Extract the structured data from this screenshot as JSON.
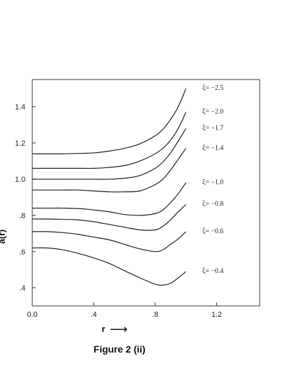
{
  "chart_data": {
    "type": "line",
    "caption": "Figure 2 (ii)",
    "xlabel": "r",
    "ylabel": "a(r)",
    "xlim": [
      0.0,
      1.48
    ],
    "ylim": [
      0.3,
      1.55
    ],
    "x_ticks": [
      0.0,
      0.4,
      0.8,
      1.2
    ],
    "x_tick_labels": [
      "0.0",
      ".4",
      ".8",
      "1.2"
    ],
    "y_ticks": [
      0.4,
      0.6,
      0.8,
      1.0,
      1.2,
      1.4
    ],
    "y_tick_labels": [
      ".4",
      ".6",
      ".8",
      "1.0",
      "1.2",
      "1.4"
    ],
    "grid": false,
    "x": [
      0.0,
      0.1,
      0.2,
      0.3,
      0.4,
      0.5,
      0.6,
      0.7,
      0.8,
      0.85,
      0.9,
      0.95,
      1.0
    ],
    "series": [
      {
        "name": "ξ= −2.5",
        "values": [
          1.14,
          1.14,
          1.14,
          1.142,
          1.145,
          1.155,
          1.17,
          1.195,
          1.24,
          1.275,
          1.33,
          1.4,
          1.5
        ]
      },
      {
        "name": "ξ= −2.0",
        "values": [
          1.06,
          1.06,
          1.06,
          1.06,
          1.06,
          1.065,
          1.075,
          1.1,
          1.14,
          1.17,
          1.215,
          1.28,
          1.37
        ]
      },
      {
        "name": "ξ= −1.7",
        "values": [
          1.0,
          1.0,
          1.0,
          1.0,
          1.0,
          1.0,
          1.005,
          1.02,
          1.06,
          1.095,
          1.145,
          1.21,
          1.28
        ]
      },
      {
        "name": "ξ= −1.4",
        "values": [
          0.94,
          0.94,
          0.94,
          0.94,
          0.935,
          0.93,
          0.93,
          0.935,
          0.97,
          1.0,
          1.05,
          1.11,
          1.17
        ]
      },
      {
        "name": "ξ= −1.0",
        "values": [
          0.84,
          0.84,
          0.84,
          0.838,
          0.83,
          0.82,
          0.805,
          0.8,
          0.81,
          0.83,
          0.87,
          0.92,
          0.98
        ]
      },
      {
        "name": "ξ= −0.8",
        "values": [
          0.78,
          0.78,
          0.778,
          0.775,
          0.765,
          0.75,
          0.735,
          0.72,
          0.72,
          0.74,
          0.775,
          0.82,
          0.86
        ]
      },
      {
        "name": "ξ= −0.6",
        "values": [
          0.71,
          0.71,
          0.705,
          0.695,
          0.68,
          0.665,
          0.64,
          0.615,
          0.6,
          0.61,
          0.64,
          0.67,
          0.71
        ]
      },
      {
        "name": "ξ= −0.4",
        "values": [
          0.62,
          0.62,
          0.61,
          0.59,
          0.565,
          0.535,
          0.495,
          0.455,
          0.42,
          0.415,
          0.425,
          0.455,
          0.49
        ]
      }
    ]
  },
  "labels": {
    "axis_partial_text": "a(r)",
    "x_arrow": "⟶"
  }
}
